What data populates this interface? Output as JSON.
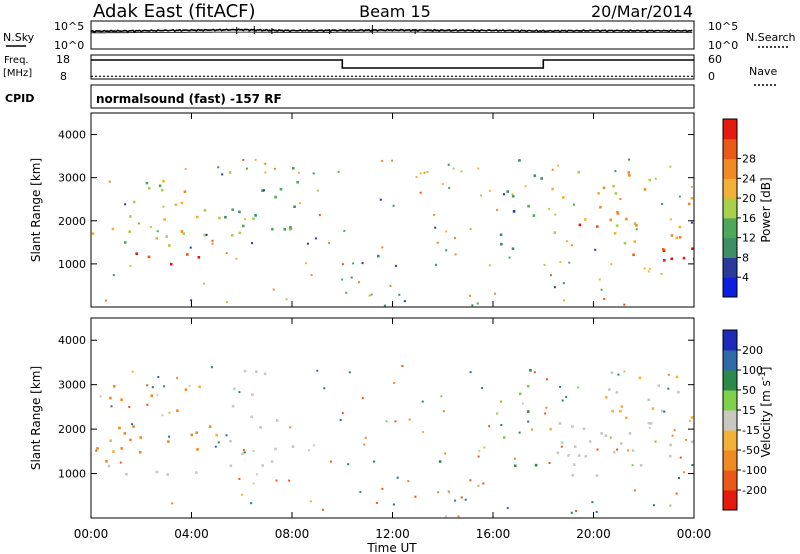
{
  "header": {
    "station": "Adak East (fitACF)",
    "beam": "Beam 15",
    "date": "20/Mar/2014"
  },
  "top_panels": {
    "nsky_label": "N.Sky",
    "nsky_tick_hi": "10^5",
    "nsky_tick_lo": "10^0",
    "nsearch_label": "N.Search",
    "nsearch_tick_hi": "10^5",
    "nsearch_tick_lo": "10^0",
    "freq_label": "Freq.",
    "freq_unit": "[MHz]",
    "freq_tick_hi": "18",
    "freq_tick_lo": "8",
    "nave_label": "Nave",
    "nave_tick_hi": "60",
    "nave_tick_lo": "0",
    "cpid_label": "CPID",
    "cpid_text": "normalsound (fast) -157 RF"
  },
  "chart_data": [
    {
      "type": "line",
      "name": "nsky-nsearch",
      "y_scale": "log",
      "ylim": [
        1,
        100000
      ],
      "series": [
        {
          "name": "N.Sky",
          "points": [
            [
              0,
              2000
            ],
            [
              2,
              2400
            ],
            [
              4,
              3200
            ],
            [
              6,
              4000
            ],
            [
              7,
              3200
            ],
            [
              8,
              2600
            ],
            [
              10,
              3000
            ],
            [
              12,
              3400
            ],
            [
              14,
              3000
            ],
            [
              16,
              2800
            ],
            [
              18,
              2200
            ],
            [
              20,
              2600
            ],
            [
              22,
              2500
            ],
            [
              24,
              2400
            ]
          ]
        },
        {
          "name": "N.Search",
          "points": [
            [
              0,
              900
            ],
            [
              2,
              1000
            ],
            [
              4,
              1200
            ],
            [
              6,
              1300
            ],
            [
              8,
              1100
            ],
            [
              10,
              1200
            ],
            [
              12,
              1300
            ],
            [
              14,
              1200
            ],
            [
              16,
              1100
            ],
            [
              18,
              1000
            ],
            [
              20,
              1100
            ],
            [
              22,
              1000
            ],
            [
              24,
              1000
            ]
          ]
        }
      ]
    },
    {
      "type": "line",
      "name": "freq-nave",
      "series": [
        {
          "name": "Freq.",
          "ylim": [
            8,
            18
          ],
          "points": [
            [
              0,
              16.5
            ],
            [
              10,
              16.5
            ],
            [
              10,
              12.5
            ],
            [
              18,
              12.5
            ],
            [
              18,
              16.5
            ],
            [
              24,
              16.5
            ]
          ]
        },
        {
          "name": "Nave",
          "ylim": [
            0,
            60
          ],
          "points": [
            [
              0,
              2
            ],
            [
              24,
              2
            ]
          ]
        }
      ]
    },
    {
      "type": "heatmap",
      "name": "power",
      "xlabel": "",
      "ylabel": "Slant Range [km]",
      "xlim": [
        0,
        24
      ],
      "ylim": [
        0,
        4500
      ],
      "y_ticks": [
        1000,
        2000,
        3000,
        4000
      ],
      "colorbar": {
        "label": "Power [dB]",
        "range": [
          0,
          32
        ],
        "ticks": [
          "4",
          "8",
          "12",
          "16",
          "20",
          "24",
          "28"
        ],
        "colors": [
          "#0b1ee0",
          "#2a3a9a",
          "#3d8f65",
          "#4ea85a",
          "#a8d04a",
          "#f2b23a",
          "#f08a22",
          "#ea5a16",
          "#e41a0e"
        ]
      },
      "regions": [
        {
          "x": [
            0,
            4.8
          ],
          "y": [
            900,
            1300
          ],
          "level": 30
        },
        {
          "x": [
            0,
            5.2
          ],
          "y": [
            1300,
            3000
          ],
          "level": 18
        },
        {
          "x": [
            5.2,
            8.2
          ],
          "y": [
            1200,
            3400
          ],
          "level": 12
        },
        {
          "x": [
            16.2,
            17.9
          ],
          "y": [
            1100,
            3500
          ],
          "level": 10
        },
        {
          "x": [
            18,
            24
          ],
          "y": [
            900,
            1500
          ],
          "level": 30
        },
        {
          "x": [
            18,
            24
          ],
          "y": [
            1500,
            3300
          ],
          "level": 20
        },
        {
          "x": [
            18.5,
            23.5
          ],
          "y": [
            1850,
            2000
          ],
          "level": 28
        },
        {
          "x": [
            13.3,
            14.3
          ],
          "y": [
            1200,
            1400
          ],
          "level": 6
        },
        {
          "x": [
            11.3,
            11.4
          ],
          "y": [
            1000,
            3000
          ],
          "level": 6
        }
      ]
    },
    {
      "type": "heatmap",
      "name": "velocity",
      "xlabel": "Time UT",
      "ylabel": "Slant Range [km]",
      "xlim": [
        0,
        24
      ],
      "ylim": [
        0,
        4500
      ],
      "x_ticks": [
        "00:00",
        "04:00",
        "08:00",
        "12:00",
        "16:00",
        "20:00",
        "00:00"
      ],
      "y_ticks": [
        1000,
        2000,
        3000,
        4000
      ],
      "colorbar": {
        "label": "Velocity [m s^-1]",
        "ticks": [
          "200",
          "100",
          "50",
          "15",
          "-15",
          "-50",
          "-100",
          "-200"
        ],
        "colors": [
          "#1d2bb8",
          "#2f6aa8",
          "#2b8a4a",
          "#7fd04a",
          "#c8c8c0",
          "#f2b23a",
          "#f08a22",
          "#e85818",
          "#e41a0e"
        ]
      },
      "regions": [
        {
          "x": [
            0,
            4.8
          ],
          "y": [
            900,
            1300
          ],
          "level": 0
        },
        {
          "x": [
            0,
            5.2
          ],
          "y": [
            1300,
            3000
          ],
          "level": -40
        },
        {
          "x": [
            5.2,
            8.2
          ],
          "y": [
            1200,
            3400
          ],
          "level": 0
        },
        {
          "x": [
            16.2,
            17.9
          ],
          "y": [
            1100,
            3500
          ],
          "level": 40
        },
        {
          "x": [
            18,
            24
          ],
          "y": [
            900,
            2000
          ],
          "level": 0
        },
        {
          "x": [
            18,
            24
          ],
          "y": [
            2000,
            3300
          ],
          "level": -10
        },
        {
          "x": [
            13.3,
            14.3
          ],
          "y": [
            1200,
            1400
          ],
          "level": 40
        }
      ]
    }
  ]
}
